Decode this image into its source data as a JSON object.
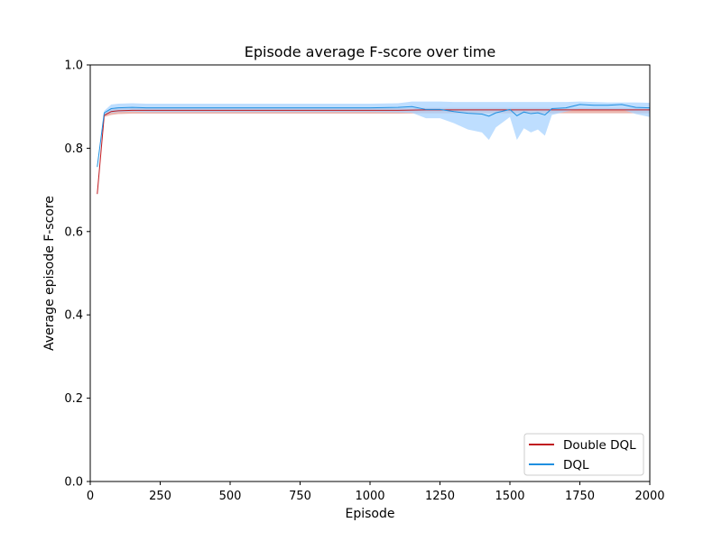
{
  "chart_data": {
    "type": "line",
    "title": "Episode average F-score over time",
    "xlabel": "Episode",
    "ylabel": "Average episode F-score",
    "xlim": [
      0,
      2000
    ],
    "ylim": [
      0.0,
      1.0
    ],
    "xticks": [
      0,
      250,
      500,
      750,
      1000,
      1250,
      1500,
      1750,
      2000
    ],
    "yticks": [
      0.0,
      0.2,
      0.4,
      0.6,
      0.8,
      1.0
    ],
    "xtick_labels": [
      "0",
      "250",
      "500",
      "750",
      "1000",
      "1250",
      "1500",
      "1750",
      "2000"
    ],
    "ytick_labels": [
      "0.0",
      "0.2",
      "0.4",
      "0.6",
      "0.8",
      "1.0"
    ],
    "grid": false,
    "legend_position": "bottom-right",
    "series": [
      {
        "name": "Double DQL",
        "color": "#c0191f",
        "band_color": "#e8a9a0",
        "x": [
          25,
          50,
          75,
          100,
          150,
          200,
          300,
          400,
          500,
          600,
          700,
          800,
          900,
          1000,
          1100,
          1200,
          1300,
          1400,
          1500,
          1600,
          1700,
          1800,
          1900,
          2000
        ],
        "y": [
          0.69,
          0.879,
          0.888,
          0.89,
          0.891,
          0.891,
          0.891,
          0.891,
          0.891,
          0.891,
          0.891,
          0.891,
          0.891,
          0.891,
          0.891,
          0.892,
          0.892,
          0.892,
          0.892,
          0.892,
          0.892,
          0.892,
          0.892,
          0.892
        ],
        "y_lower": [
          0.69,
          0.875,
          0.88,
          0.882,
          0.883,
          0.883,
          0.883,
          0.883,
          0.883,
          0.883,
          0.883,
          0.883,
          0.883,
          0.883,
          0.883,
          0.884,
          0.884,
          0.884,
          0.884,
          0.884,
          0.884,
          0.884,
          0.884,
          0.884
        ],
        "y_upper": [
          0.69,
          0.883,
          0.893,
          0.895,
          0.896,
          0.896,
          0.896,
          0.896,
          0.896,
          0.896,
          0.896,
          0.896,
          0.896,
          0.896,
          0.896,
          0.897,
          0.897,
          0.897,
          0.897,
          0.897,
          0.897,
          0.897,
          0.897,
          0.897
        ]
      },
      {
        "name": "DQL",
        "color": "#1f8fe0",
        "band_color": "#a8d3ff",
        "x": [
          25,
          50,
          75,
          100,
          150,
          200,
          300,
          400,
          500,
          600,
          700,
          800,
          900,
          1000,
          1100,
          1150,
          1200,
          1250,
          1300,
          1350,
          1400,
          1425,
          1450,
          1500,
          1525,
          1550,
          1575,
          1600,
          1625,
          1650,
          1700,
          1750,
          1800,
          1850,
          1900,
          1950,
          2000
        ],
        "y": [
          0.755,
          0.885,
          0.895,
          0.897,
          0.898,
          0.897,
          0.897,
          0.897,
          0.897,
          0.897,
          0.897,
          0.897,
          0.897,
          0.897,
          0.898,
          0.9,
          0.893,
          0.893,
          0.888,
          0.884,
          0.882,
          0.877,
          0.885,
          0.893,
          0.878,
          0.887,
          0.883,
          0.885,
          0.88,
          0.895,
          0.897,
          0.905,
          0.903,
          0.903,
          0.905,
          0.898,
          0.897
        ],
        "y_lower": [
          0.755,
          0.88,
          0.885,
          0.887,
          0.888,
          0.887,
          0.887,
          0.887,
          0.887,
          0.887,
          0.887,
          0.887,
          0.887,
          0.887,
          0.886,
          0.885,
          0.872,
          0.872,
          0.86,
          0.845,
          0.838,
          0.82,
          0.85,
          0.875,
          0.82,
          0.848,
          0.838,
          0.845,
          0.83,
          0.88,
          0.888,
          0.894,
          0.893,
          0.892,
          0.893,
          0.882,
          0.875
        ],
        "y_upper": [
          0.755,
          0.89,
          0.905,
          0.907,
          0.908,
          0.907,
          0.907,
          0.907,
          0.907,
          0.907,
          0.907,
          0.907,
          0.907,
          0.907,
          0.908,
          0.912,
          0.912,
          0.912,
          0.911,
          0.911,
          0.911,
          0.911,
          0.911,
          0.911,
          0.911,
          0.911,
          0.911,
          0.911,
          0.911,
          0.911,
          0.911,
          0.912,
          0.911,
          0.91,
          0.91,
          0.91,
          0.909
        ]
      }
    ]
  }
}
